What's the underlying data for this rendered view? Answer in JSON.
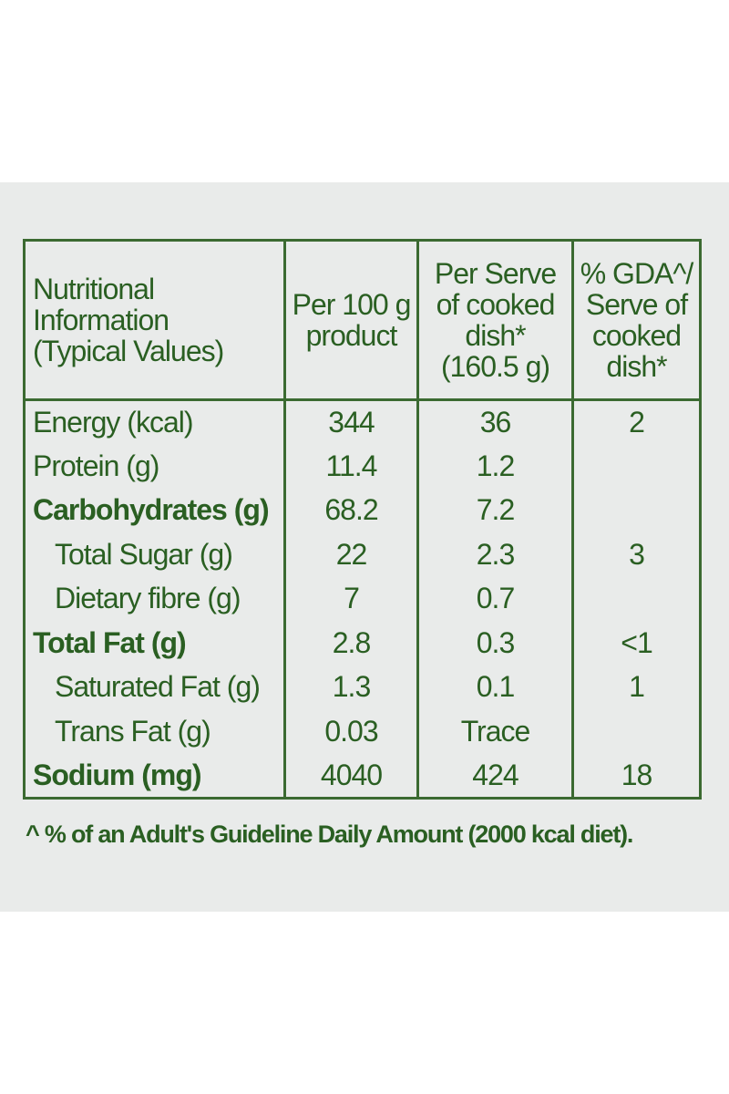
{
  "header": {
    "col1": [
      "Nutritional",
      "Information",
      "(Typical Values)"
    ],
    "col2": [
      "Per 100 g",
      "product"
    ],
    "col3": [
      "Per Serve",
      "of cooked",
      "dish*",
      "(160.5 g)"
    ],
    "col4": [
      "% GDA^/",
      "Serve of",
      "cooked",
      "dish*"
    ]
  },
  "rows": [
    {
      "name": "Energy (kcal)",
      "per100": "344",
      "perServe": "36",
      "gda": "2"
    },
    {
      "name": "Protein (g)",
      "per100": "11.4",
      "perServe": "1.2",
      "gda": ""
    },
    {
      "name": "Carbohydrates (g)",
      "per100": "68.2",
      "perServe": "7.2",
      "gda": ""
    },
    {
      "name": "Total Sugar (g)",
      "per100": "22",
      "perServe": "2.3",
      "gda": "3"
    },
    {
      "name": "Dietary fibre (g)",
      "per100": "7",
      "perServe": "0.7",
      "gda": ""
    },
    {
      "name": "Total Fat (g)",
      "per100": "2.8",
      "perServe": "0.3",
      "gda": "<1"
    },
    {
      "name": "Saturated Fat (g)",
      "per100": "1.3",
      "perServe": "0.1",
      "gda": "1"
    },
    {
      "name": "Trans Fat (g)",
      "per100": "0.03",
      "perServe": "Trace",
      "gda": ""
    },
    {
      "name": "Sodium (mg)",
      "per100": "4040",
      "perServe": "424",
      "gda": "18"
    }
  ],
  "footnote": "^ % of an Adult's Guideline Daily Amount (2000 kcal diet).",
  "colors": {
    "text": "#2a5f22",
    "border": "#3b6a31",
    "panel": "#e9ebea"
  }
}
